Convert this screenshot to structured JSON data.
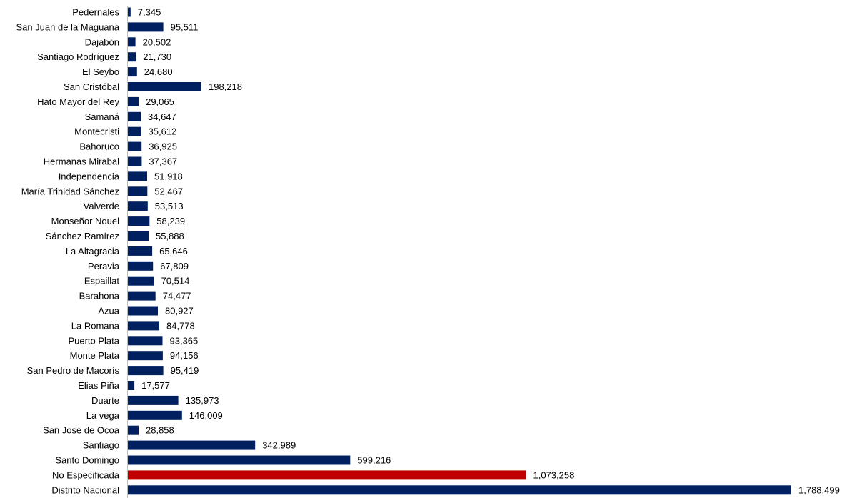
{
  "chart_data": {
    "type": "bar",
    "orientation": "horizontal",
    "title": "",
    "xlabel": "",
    "ylabel": "",
    "grid": false,
    "legend": "none",
    "xlim": [
      0,
      1788499
    ],
    "categories": [
      "Pedernales",
      "San Juan de la Maguana",
      "Dajabón",
      "Santiago Rodríguez",
      "El Seybo",
      "San Cristóbal",
      "Hato Mayor del Rey",
      "Samaná",
      "Montecristi",
      "Bahoruco",
      "Hermanas Mirabal",
      "Independencia",
      "María Trinidad Sánchez",
      "Valverde",
      "Monseñor Nouel",
      "Sánchez Ramírez",
      "La Altagracia",
      "Peravia",
      "Espaillat",
      "Barahona",
      "Azua",
      "La Romana",
      "Puerto Plata",
      "Monte Plata",
      "San Pedro de Macorís",
      "Elias Piña",
      "Duarte",
      "La vega",
      "San José de Ocoa",
      "Santiago",
      "Santo Domingo",
      "No Especificada",
      "Distrito Nacional"
    ],
    "values": [
      7345,
      95511,
      20502,
      21730,
      24680,
      198218,
      29065,
      34647,
      35612,
      36925,
      37367,
      51918,
      52467,
      53513,
      58239,
      55888,
      65646,
      67809,
      70514,
      74477,
      80927,
      84778,
      93365,
      94156,
      95419,
      17577,
      135973,
      146009,
      28858,
      342989,
      599216,
      1073258,
      1788499
    ],
    "value_labels": [
      "7,345",
      "95,511",
      "20,502",
      "21,730",
      "24,680",
      "198,218",
      "29,065",
      "34,647",
      "35,612",
      "36,925",
      "37,367",
      "51,918",
      "52,467",
      "53,513",
      "58,239",
      "55,888",
      "65,646",
      "67,809",
      "70,514",
      "74,477",
      "80,927",
      "84,778",
      "93,365",
      "94,156",
      "95,419",
      "17,577",
      "135,973",
      "146,009",
      "28,858",
      "342,989",
      "599,216",
      "1,073,258",
      "1,788,499"
    ],
    "colors": {
      "default": "#002060",
      "highlight": "#C00000",
      "highlight_category": "No Especificada"
    }
  }
}
